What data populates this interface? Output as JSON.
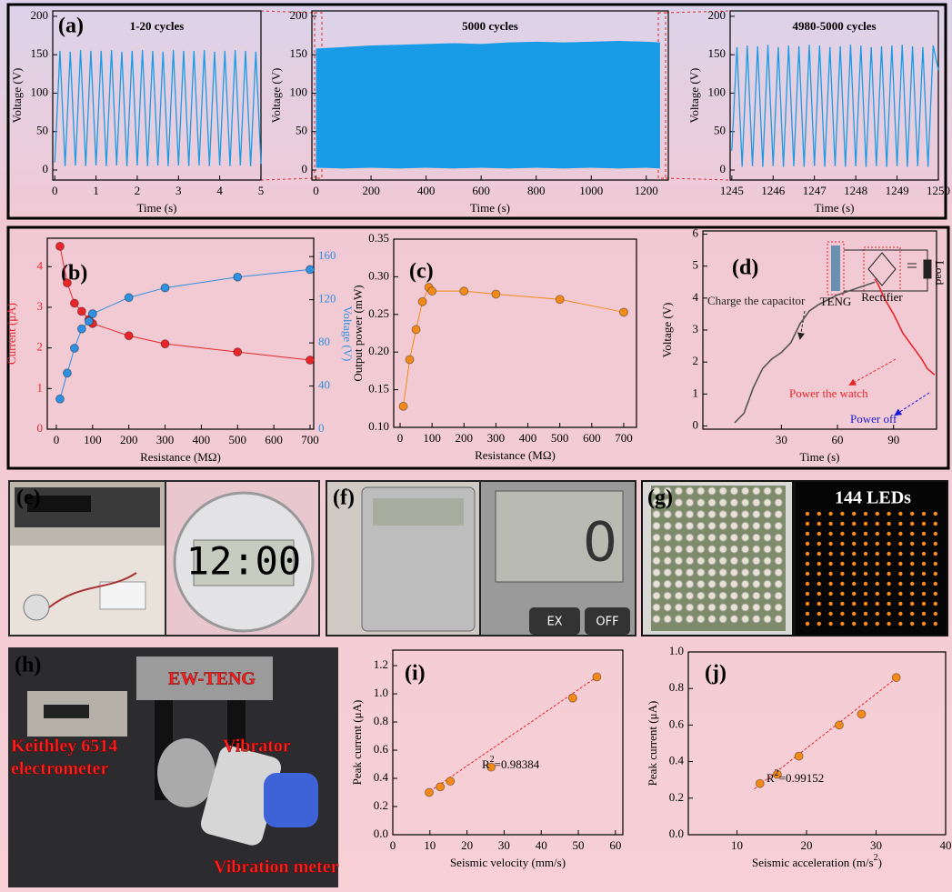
{
  "chart_data": [
    {
      "type": "line",
      "label": "(a)",
      "title": "1-20 cycles",
      "xlabel": "Time (s)",
      "ylabel": "Voltage (V)",
      "color": "#1a9be6",
      "x": [
        0,
        0.125,
        0.25,
        0.375,
        0.5,
        0.625,
        0.75,
        0.875,
        1,
        1.125,
        1.25,
        1.375,
        1.5,
        1.625,
        1.75,
        1.875,
        2,
        2.125,
        2.25,
        2.375,
        2.5,
        2.625,
        2.75,
        2.875,
        3,
        3.125,
        3.25,
        3.375,
        3.5,
        3.625,
        3.75,
        3.875,
        4,
        4.125,
        4.25,
        4.375,
        4.5,
        4.625,
        4.75,
        4.875,
        5
      ],
      "values": [
        10,
        155,
        5,
        154,
        6,
        156,
        5,
        155,
        6,
        155,
        5,
        156,
        6,
        154,
        5,
        155,
        6,
        156,
        5,
        155,
        6,
        154,
        5,
        156,
        6,
        155,
        5,
        155,
        6,
        156,
        5,
        154,
        6,
        155,
        5,
        156,
        6,
        155,
        5,
        154,
        8
      ],
      "xlim": [
        -0.05,
        5
      ],
      "xticks": [
        0,
        1,
        2,
        3,
        4,
        5
      ],
      "ylim": [
        -13,
        207
      ],
      "yticks": [
        0,
        50,
        100,
        150,
        200
      ]
    },
    {
      "type": "area",
      "title": "5000 cycles",
      "xlabel": "Time (s)",
      "ylabel": "Voltage (V)",
      "color": "#1a9be6",
      "x": [
        0,
        100,
        200,
        300,
        400,
        500,
        600,
        700,
        800,
        900,
        1000,
        1100,
        1200,
        1250
      ],
      "upper": [
        158,
        160,
        162,
        163,
        164,
        165,
        164,
        166,
        167,
        166,
        167,
        168,
        167,
        166
      ],
      "lower": [
        3,
        2,
        3,
        2,
        3,
        2,
        3,
        2,
        3,
        2,
        3,
        2,
        3,
        2
      ],
      "xlim": [
        -15,
        1280
      ],
      "xticks": [
        0,
        200,
        400,
        600,
        800,
        1000,
        1200
      ],
      "ylim": [
        -13,
        207
      ],
      "yticks": [
        0,
        50,
        100,
        150,
        200
      ]
    },
    {
      "type": "line",
      "title": "4980-5000 cycles",
      "xlabel": "Time (s)",
      "ylabel": "Voltage (V)",
      "color": "#1a9be6",
      "x": [
        1245,
        1245.125,
        1245.25,
        1245.375,
        1245.5,
        1245.625,
        1245.75,
        1245.875,
        1246,
        1246.125,
        1246.25,
        1246.375,
        1246.5,
        1246.625,
        1246.75,
        1246.875,
        1247,
        1247.125,
        1247.25,
        1247.375,
        1247.5,
        1247.625,
        1247.75,
        1247.875,
        1248,
        1248.125,
        1248.25,
        1248.375,
        1248.5,
        1248.625,
        1248.75,
        1248.875,
        1249,
        1249.125,
        1249.25,
        1249.375,
        1249.5,
        1249.625,
        1249.75,
        1249.875,
        1250
      ],
      "values": [
        25,
        160,
        4,
        162,
        5,
        161,
        4,
        163,
        5,
        160,
        4,
        162,
        5,
        161,
        4,
        163,
        5,
        162,
        4,
        160,
        5,
        161,
        4,
        163,
        5,
        162,
        4,
        160,
        5,
        161,
        4,
        162,
        5,
        163,
        4,
        161,
        5,
        160,
        4,
        162,
        130
      ],
      "xlim": [
        1244.96,
        1250
      ],
      "xticks": [
        1245,
        1246,
        1247,
        1248,
        1249,
        1250
      ],
      "ylim": [
        -13,
        207
      ],
      "yticks": [
        0,
        50,
        100,
        150,
        200
      ]
    },
    {
      "type": "line",
      "label": "(b)",
      "xlabel": "Resistance (MΩ)",
      "ylabel": "Current (μA)",
      "y2label": "Voltage (V)",
      "yaxis_color": "#e8262a",
      "y2axis_color": "#2f8fe0",
      "x": [
        10,
        30,
        50,
        70,
        90,
        100,
        200,
        300,
        500,
        700
      ],
      "series": [
        {
          "color": "#e8262a",
          "marker": true,
          "values": [
            4.5,
            3.6,
            3.1,
            2.9,
            2.7,
            2.6,
            2.3,
            2.1,
            1.9,
            1.7
          ]
        },
        {
          "color": "#2f8fe0",
          "marker": true,
          "axis": "y2",
          "values": [
            28,
            52,
            75,
            93,
            100,
            107,
            122,
            131,
            141,
            148
          ]
        }
      ],
      "xlim": [
        -25,
        710
      ],
      "xticks": [
        0,
        100,
        200,
        300,
        400,
        500,
        600,
        700
      ],
      "ylim": [
        0,
        4.7
      ],
      "yticks": [
        0,
        1,
        2,
        3,
        4
      ],
      "y2lim": [
        0,
        177
      ],
      "y2ticks": [
        0,
        40,
        80,
        120,
        160
      ]
    },
    {
      "type": "line",
      "label": "(c)",
      "xlabel": "Resistance (MΩ)",
      "ylabel": "Output power (mW)",
      "x": [
        10,
        30,
        50,
        70,
        90,
        100,
        200,
        300,
        500,
        700
      ],
      "series": [
        {
          "color": "#f28a1a",
          "marker": true,
          "values": [
            0.128,
            0.19,
            0.23,
            0.267,
            0.286,
            0.281,
            0.281,
            0.277,
            0.27,
            0.253
          ]
        }
      ],
      "xlim": [
        -20,
        740
      ],
      "xticks": [
        0,
        100,
        200,
        300,
        400,
        500,
        600,
        700
      ],
      "ylim": [
        0.1,
        0.35
      ],
      "yticks": [
        {
          "value": 0.1,
          "label": "0.10"
        },
        0.15,
        {
          "value": 0.2,
          "label": "0.20"
        },
        0.25,
        {
          "value": 0.3,
          "label": "0.30"
        },
        0.35
      ]
    },
    {
      "type": "line",
      "label": "(d)",
      "xlabel": "Time (s)",
      "ylabel": "Voltage (V)",
      "series": [
        {
          "color": "#555555",
          "x": [
            5,
            10,
            15,
            20,
            25,
            30,
            35,
            40,
            45,
            50,
            60,
            70,
            80
          ],
          "values": [
            0.1,
            0.4,
            1.2,
            1.8,
            2.1,
            2.3,
            2.6,
            3.2,
            3.6,
            3.8,
            4.1,
            4.3,
            4.5
          ]
        },
        {
          "color": "#e8262a",
          "x": [
            80,
            82,
            85,
            90,
            95,
            100,
            105,
            108,
            110,
            112
          ],
          "values": [
            4.6,
            4.4,
            4.0,
            3.5,
            2.9,
            2.5,
            2.1,
            1.8,
            1.7,
            1.6
          ]
        }
      ],
      "annotations": [
        {
          "text": "Charge the capacitor",
          "color": "#222222"
        },
        {
          "text": "Power the watch",
          "color": "#e8262a"
        },
        {
          "text": "Power off",
          "color": "#1b1bd6"
        }
      ],
      "inset_labels": [
        "TENG",
        "Rectifier",
        "Load"
      ],
      "xlim": [
        -12,
        113
      ],
      "xticks": [
        30,
        60,
        90
      ],
      "ylim": [
        -0.1,
        6.1
      ],
      "yticks": [
        0,
        1,
        2,
        3,
        4,
        5,
        6
      ]
    },
    {
      "type": "scatter",
      "label": "(i)",
      "xlabel": "Seismic velocity (mm/s)",
      "ylabel": "Peak current (μA)",
      "color": "#f28a1a",
      "x": [
        9.8,
        12.8,
        15.5,
        26.5,
        48.5,
        55
      ],
      "values": [
        0.3,
        0.34,
        0.38,
        0.48,
        0.97,
        1.12
      ],
      "fit": {
        "color": "#e8262a",
        "x": [
          9,
          55
        ],
        "values": [
          0.29,
          1.12
        ]
      },
      "annotation": [
        "R",
        "2",
        "=0.98384"
      ],
      "xlim": [
        0,
        62
      ],
      "xticks": [
        0,
        10,
        20,
        30,
        40,
        50,
        60
      ],
      "ylim": [
        0,
        1.31
      ],
      "yticks": [
        {
          "value": 0,
          "label": "0.0"
        },
        0.2,
        0.4,
        0.6,
        0.8,
        {
          "value": 1,
          "label": "1.0"
        },
        1.2
      ]
    },
    {
      "type": "scatter",
      "label": "(j)",
      "xlabel": [
        "Seismic acceleration (m/s",
        "2",
        ")"
      ],
      "ylabel": "Peak current (μA)",
      "color": "#f28a1a",
      "x": [
        13.3,
        15.8,
        18.9,
        24.7,
        27.9,
        32.9
      ],
      "values": [
        0.28,
        0.33,
        0.43,
        0.6,
        0.66,
        0.86
      ],
      "fit": {
        "color": "#e8262a",
        "x": [
          12.5,
          33
        ],
        "values": [
          0.25,
          0.86
        ]
      },
      "annotation": [
        "R",
        "2",
        "=0.99152"
      ],
      "xlim": [
        3,
        40
      ],
      "xticks": [
        10,
        20,
        30,
        40
      ],
      "ylim": [
        0,
        1
      ],
      "yticks": [
        {
          "value": 0,
          "label": "0.0"
        },
        0.2,
        0.4,
        0.6,
        0.8,
        {
          "value": 1,
          "label": "1.0"
        }
      ]
    }
  ],
  "photos": {
    "e": {
      "label": "(e)",
      "watch_display": "12:00"
    },
    "f": {
      "label": "(f)",
      "display": "0",
      "keys": [
        "EX",
        "OFF"
      ]
    },
    "g": {
      "label": "(g)",
      "caption": "144 LEDs"
    },
    "h": {
      "label": "(h)",
      "annotations": [
        "EW-TENG",
        "Keithley 6514",
        "electrometer",
        "Vibrator",
        "Vibration meter"
      ]
    }
  }
}
